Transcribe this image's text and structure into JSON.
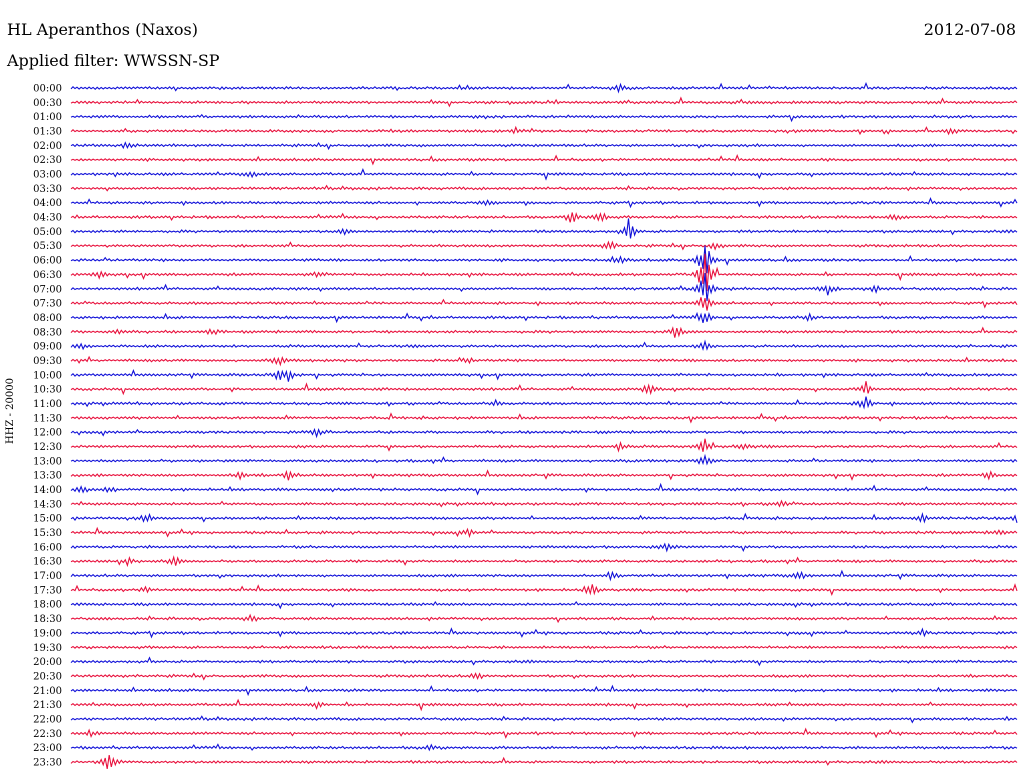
{
  "header": {
    "station": "HL Aperanthos (Naxos)",
    "filter": "Applied filter: WWSSN-SP",
    "date": "2012-07-08"
  },
  "colors": {
    "blue": "#1010d8",
    "red": "#e8103c"
  },
  "chart_data": {
    "type": "line",
    "title": "HL Aperanthos (Naxos)",
    "subtitle": "Applied filter: WWSSN-SP",
    "date": "2012-07-08",
    "ylabel": "HHZ - 20000",
    "xlabel": "",
    "grid": false,
    "legend": "none",
    "series_color_pattern": [
      "blue",
      "red"
    ],
    "rows": [
      {
        "time": "00:00",
        "color": "blue",
        "events": [
          [
            0.58,
            4
          ]
        ]
      },
      {
        "time": "00:30",
        "color": "red",
        "events": []
      },
      {
        "time": "01:00",
        "color": "blue",
        "events": []
      },
      {
        "time": "01:30",
        "color": "red",
        "events": [
          [
            0.47,
            3
          ],
          [
            0.93,
            3
          ]
        ]
      },
      {
        "time": "02:00",
        "color": "blue",
        "events": [
          [
            0.06,
            3
          ]
        ]
      },
      {
        "time": "02:30",
        "color": "red",
        "events": []
      },
      {
        "time": "03:00",
        "color": "blue",
        "events": [
          [
            0.19,
            4
          ]
        ]
      },
      {
        "time": "03:30",
        "color": "red",
        "events": []
      },
      {
        "time": "04:00",
        "color": "blue",
        "events": [
          [
            0.44,
            3
          ]
        ]
      },
      {
        "time": "04:30",
        "color": "red",
        "events": [
          [
            0.53,
            7
          ],
          [
            0.56,
            6
          ],
          [
            0.87,
            3
          ]
        ]
      },
      {
        "time": "05:00",
        "color": "blue",
        "events": [
          [
            0.59,
            12
          ],
          [
            0.29,
            3
          ]
        ]
      },
      {
        "time": "05:30",
        "color": "red",
        "events": [
          [
            0.57,
            5
          ],
          [
            0.68,
            4
          ]
        ]
      },
      {
        "time": "06:00",
        "color": "blue",
        "events": [
          [
            0.67,
            25
          ],
          [
            0.58,
            4
          ]
        ]
      },
      {
        "time": "06:30",
        "color": "red",
        "events": [
          [
            0.67,
            30
          ],
          [
            0.03,
            4
          ],
          [
            0.26,
            3
          ]
        ]
      },
      {
        "time": "07:00",
        "color": "blue",
        "events": [
          [
            0.67,
            20
          ],
          [
            0.8,
            6
          ],
          [
            0.85,
            4
          ]
        ]
      },
      {
        "time": "07:30",
        "color": "red",
        "events": [
          [
            0.67,
            12
          ]
        ]
      },
      {
        "time": "08:00",
        "color": "blue",
        "events": [
          [
            0.67,
            8
          ],
          [
            0.78,
            3
          ]
        ]
      },
      {
        "time": "08:30",
        "color": "red",
        "events": [
          [
            0.64,
            8
          ],
          [
            0.05,
            3
          ],
          [
            0.15,
            3
          ]
        ]
      },
      {
        "time": "09:00",
        "color": "blue",
        "events": [
          [
            0.67,
            6
          ],
          [
            0.01,
            4
          ]
        ]
      },
      {
        "time": "09:30",
        "color": "red",
        "events": [
          [
            0.22,
            5
          ],
          [
            0.42,
            3
          ]
        ]
      },
      {
        "time": "10:00",
        "color": "blue",
        "events": [
          [
            0.23,
            7
          ],
          [
            0.22,
            6
          ]
        ]
      },
      {
        "time": "10:30",
        "color": "red",
        "events": [
          [
            0.61,
            6
          ],
          [
            0.84,
            8
          ]
        ]
      },
      {
        "time": "11:00",
        "color": "blue",
        "events": [
          [
            0.84,
            8
          ],
          [
            0.45,
            3
          ]
        ]
      },
      {
        "time": "11:30",
        "color": "red",
        "events": []
      },
      {
        "time": "12:00",
        "color": "blue",
        "events": [
          [
            0.26,
            5
          ]
        ]
      },
      {
        "time": "12:30",
        "color": "red",
        "events": [
          [
            0.67,
            9
          ],
          [
            0.58,
            5
          ],
          [
            0.71,
            4
          ]
        ]
      },
      {
        "time": "13:00",
        "color": "blue",
        "events": [
          [
            0.67,
            6
          ]
        ]
      },
      {
        "time": "13:30",
        "color": "red",
        "events": [
          [
            0.18,
            5
          ],
          [
            0.23,
            5
          ],
          [
            0.97,
            5
          ]
        ]
      },
      {
        "time": "14:00",
        "color": "blue",
        "events": [
          [
            0.01,
            4
          ],
          [
            0.04,
            3
          ]
        ]
      },
      {
        "time": "14:30",
        "color": "red",
        "events": [
          [
            0.75,
            4
          ]
        ]
      },
      {
        "time": "15:00",
        "color": "blue",
        "events": [
          [
            0.08,
            6
          ],
          [
            0.9,
            5
          ],
          [
            1.0,
            4
          ]
        ]
      },
      {
        "time": "15:30",
        "color": "red",
        "events": [
          [
            0.42,
            4
          ],
          [
            0.98,
            3
          ]
        ]
      },
      {
        "time": "16:00",
        "color": "blue",
        "events": [
          [
            0.63,
            4
          ]
        ]
      },
      {
        "time": "16:30",
        "color": "red",
        "events": [
          [
            0.06,
            4
          ],
          [
            0.11,
            4
          ]
        ]
      },
      {
        "time": "17:00",
        "color": "blue",
        "events": [
          [
            0.77,
            5
          ],
          [
            0.57,
            4
          ]
        ]
      },
      {
        "time": "17:30",
        "color": "red",
        "events": [
          [
            0.55,
            6
          ],
          [
            0.08,
            3
          ]
        ]
      },
      {
        "time": "18:00",
        "color": "blue",
        "events": []
      },
      {
        "time": "18:30",
        "color": "red",
        "events": [
          [
            0.19,
            4
          ]
        ]
      },
      {
        "time": "19:00",
        "color": "blue",
        "events": [
          [
            0.9,
            3
          ]
        ]
      },
      {
        "time": "19:30",
        "color": "red",
        "events": []
      },
      {
        "time": "20:00",
        "color": "blue",
        "events": []
      },
      {
        "time": "20:30",
        "color": "red",
        "events": [
          [
            0.43,
            4
          ]
        ]
      },
      {
        "time": "21:00",
        "color": "blue",
        "events": []
      },
      {
        "time": "21:30",
        "color": "red",
        "events": [
          [
            0.26,
            3
          ]
        ]
      },
      {
        "time": "22:00",
        "color": "blue",
        "events": []
      },
      {
        "time": "22:30",
        "color": "red",
        "events": [
          [
            0.02,
            3
          ]
        ]
      },
      {
        "time": "23:00",
        "color": "blue",
        "events": [
          [
            0.38,
            3
          ]
        ]
      },
      {
        "time": "23:30",
        "color": "red",
        "events": [
          [
            0.04,
            12
          ]
        ]
      }
    ]
  }
}
